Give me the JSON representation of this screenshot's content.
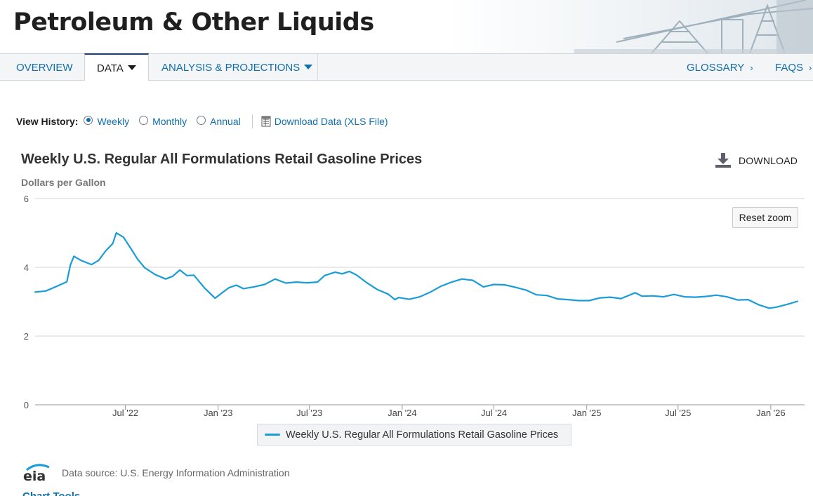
{
  "page": {
    "title": "Petroleum & Other Liquids"
  },
  "nav": {
    "overview": "OVERVIEW",
    "data": "DATA",
    "analysis": "ANALYSIS & PROJECTIONS",
    "glossary": "GLOSSARY",
    "faqs": "FAQS",
    "chevron": "›"
  },
  "history": {
    "label": "View History:",
    "options": [
      {
        "label": "Weekly",
        "selected": true
      },
      {
        "label": "Monthly",
        "selected": false
      },
      {
        "label": "Annual",
        "selected": false
      }
    ],
    "download_link": "Download Data (XLS File)"
  },
  "chart_controls": {
    "download_label": "DOWNLOAD",
    "reset_zoom": "Reset zoom"
  },
  "source": {
    "text": "Data source: U.S. Energy Information Administration",
    "logo_text": "eia"
  },
  "footer_cut": {
    "text": "Chart Tools"
  },
  "colors": {
    "series": "#1a9cd8",
    "link": "#0f6fae",
    "grid": "#d6d6d6"
  },
  "icons": [
    "radio-icon",
    "spreadsheet-icon",
    "download-icon",
    "eia-logo",
    "pumpjack-graphic",
    "caret-down-icon"
  ],
  "chart_data": {
    "type": "line",
    "title": "Weekly U.S. Regular All Formulations Retail Gasoline Prices",
    "ylabel": "Dollars per Gallon",
    "xlabel": "",
    "ylim": [
      0,
      6
    ],
    "yticks": [
      0,
      2,
      4,
      6
    ],
    "xlim": [
      "2022-01-03",
      "2026-03-09"
    ],
    "xticks": [
      {
        "date": "2022-07-01",
        "label": "Jul '22"
      },
      {
        "date": "2023-01-01",
        "label": "Jan '23"
      },
      {
        "date": "2023-07-01",
        "label": "Jul '23"
      },
      {
        "date": "2024-01-01",
        "label": "Jan '24"
      },
      {
        "date": "2024-07-01",
        "label": "Jul '24"
      },
      {
        "date": "2025-01-01",
        "label": "Jan '25"
      },
      {
        "date": "2025-07-01",
        "label": "Jul '25"
      },
      {
        "date": "2026-01-01",
        "label": "Jan '26"
      }
    ],
    "grid": true,
    "legend_position": "bottom",
    "series": [
      {
        "name": "Weekly U.S. Regular All Formulations Retail Gasoline Prices",
        "color": "#1a9cd8",
        "points": [
          [
            "2022-01-03",
            3.28
          ],
          [
            "2022-01-24",
            3.31
          ],
          [
            "2022-02-14",
            3.44
          ],
          [
            "2022-03-07",
            3.58
          ],
          [
            "2022-03-14",
            4.07
          ],
          [
            "2022-03-21",
            4.32
          ],
          [
            "2022-04-04",
            4.2
          ],
          [
            "2022-04-25",
            4.08
          ],
          [
            "2022-05-09",
            4.2
          ],
          [
            "2022-05-23",
            4.48
          ],
          [
            "2022-06-06",
            4.69
          ],
          [
            "2022-06-13",
            5.0
          ],
          [
            "2022-06-27",
            4.88
          ],
          [
            "2022-07-11",
            4.57
          ],
          [
            "2022-07-25",
            4.24
          ],
          [
            "2022-08-08",
            3.99
          ],
          [
            "2022-08-29",
            3.79
          ],
          [
            "2022-09-19",
            3.66
          ],
          [
            "2022-10-03",
            3.74
          ],
          [
            "2022-10-17",
            3.92
          ],
          [
            "2022-10-31",
            3.76
          ],
          [
            "2022-11-14",
            3.77
          ],
          [
            "2022-12-05",
            3.4
          ],
          [
            "2022-12-26",
            3.1
          ],
          [
            "2023-01-09",
            3.26
          ],
          [
            "2023-01-23",
            3.41
          ],
          [
            "2023-02-06",
            3.48
          ],
          [
            "2023-02-20",
            3.38
          ],
          [
            "2023-03-13",
            3.43
          ],
          [
            "2023-04-03",
            3.5
          ],
          [
            "2023-04-24",
            3.66
          ],
          [
            "2023-05-15",
            3.54
          ],
          [
            "2023-06-05",
            3.57
          ],
          [
            "2023-06-26",
            3.55
          ],
          [
            "2023-07-17",
            3.57
          ],
          [
            "2023-07-31",
            3.76
          ],
          [
            "2023-08-21",
            3.86
          ],
          [
            "2023-09-04",
            3.81
          ],
          [
            "2023-09-18",
            3.88
          ],
          [
            "2023-10-02",
            3.78
          ],
          [
            "2023-10-23",
            3.55
          ],
          [
            "2023-11-13",
            3.35
          ],
          [
            "2023-12-04",
            3.22
          ],
          [
            "2023-12-18",
            3.06
          ],
          [
            "2023-12-25",
            3.12
          ],
          [
            "2024-01-15",
            3.07
          ],
          [
            "2024-02-05",
            3.14
          ],
          [
            "2024-02-26",
            3.28
          ],
          [
            "2024-03-18",
            3.45
          ],
          [
            "2024-04-08",
            3.57
          ],
          [
            "2024-04-29",
            3.66
          ],
          [
            "2024-05-20",
            3.62
          ],
          [
            "2024-06-10",
            3.43
          ],
          [
            "2024-07-01",
            3.5
          ],
          [
            "2024-07-22",
            3.49
          ],
          [
            "2024-08-12",
            3.42
          ],
          [
            "2024-09-02",
            3.34
          ],
          [
            "2024-09-23",
            3.2
          ],
          [
            "2024-10-14",
            3.18
          ],
          [
            "2024-11-04",
            3.08
          ],
          [
            "2024-11-25",
            3.06
          ],
          [
            "2024-12-16",
            3.03
          ],
          [
            "2025-01-06",
            3.03
          ],
          [
            "2025-01-27",
            3.11
          ],
          [
            "2025-02-17",
            3.13
          ],
          [
            "2025-03-10",
            3.09
          ],
          [
            "2025-04-07",
            3.26
          ],
          [
            "2025-04-21",
            3.16
          ],
          [
            "2025-05-12",
            3.17
          ],
          [
            "2025-06-02",
            3.14
          ],
          [
            "2025-06-23",
            3.21
          ],
          [
            "2025-07-14",
            3.14
          ],
          [
            "2025-08-04",
            3.13
          ],
          [
            "2025-08-25",
            3.15
          ],
          [
            "2025-09-15",
            3.19
          ],
          [
            "2025-10-06",
            3.14
          ],
          [
            "2025-10-27",
            3.05
          ],
          [
            "2025-11-17",
            3.06
          ],
          [
            "2025-12-08",
            2.91
          ],
          [
            "2025-12-29",
            2.81
          ],
          [
            "2026-01-12",
            2.84
          ],
          [
            "2026-02-02",
            2.92
          ],
          [
            "2026-02-23",
            3.01
          ]
        ]
      }
    ]
  }
}
